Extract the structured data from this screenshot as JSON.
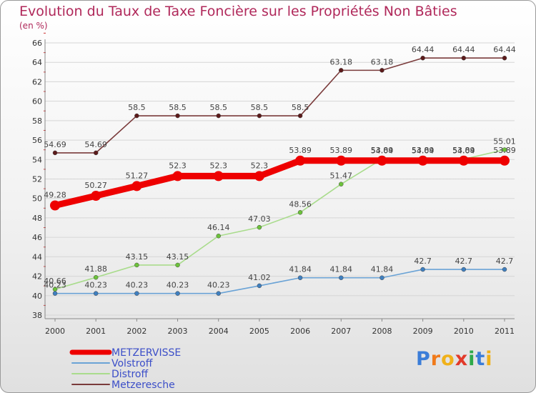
{
  "chart_data": {
    "type": "line",
    "title": "Evolution du Taux de Taxe Foncière sur les Propriétés Non Bâties",
    "subtitle": "(en %)",
    "categories": [
      "2000",
      "2001",
      "2002",
      "2003",
      "2004",
      "2005",
      "2006",
      "2007",
      "2008",
      "2009",
      "2010",
      "2011"
    ],
    "ylim": [
      38,
      66
    ],
    "yticks": [
      38,
      40,
      42,
      44,
      46,
      48,
      50,
      52,
      54,
      56,
      58,
      60,
      62,
      64,
      66
    ],
    "grid": true,
    "legend_position": "bottom-left",
    "series": [
      {
        "name": "Metzeresche",
        "color": "#7a3b3b",
        "marker": "#5c1a1a",
        "values": [
          54.69,
          54.69,
          58.5,
          58.5,
          58.5,
          58.5,
          58.5,
          63.18,
          63.18,
          64.44,
          64.44,
          64.44
        ],
        "labels": [
          "54.69",
          "54.69",
          "58.5",
          "58.5",
          "58.5",
          "58.5",
          "58.5",
          "63.18",
          "63.18",
          "64.44",
          "64.44",
          "64.44"
        ]
      },
      {
        "name": "Distroff",
        "color": "#a9dc8c",
        "marker": "#6cc23a",
        "values": [
          40.66,
          41.88,
          43.15,
          43.15,
          46.14,
          47.03,
          48.56,
          51.47,
          54.04,
          54.04,
          54.04,
          55.01
        ],
        "labels": [
          "40.66",
          "41.88",
          "43.15",
          "43.15",
          "46.14",
          "47.03",
          "48.56",
          "51.47",
          "54.04",
          "54.04",
          "54.04",
          "55.01"
        ]
      },
      {
        "name": "Volstroff",
        "color": "#6aa3d6",
        "marker": "#3f7fbf",
        "values": [
          40.23,
          40.23,
          40.23,
          40.23,
          40.23,
          41.02,
          41.84,
          41.84,
          41.84,
          42.7,
          42.7,
          42.7
        ],
        "labels": [
          "40.23",
          "40.23",
          "40.23",
          "40.23",
          "40.23",
          "41.02",
          "41.84",
          "41.84",
          "41.84",
          "42.7",
          "42.7",
          "42.7"
        ]
      },
      {
        "name": "METZERVISSE",
        "color": "#ee0000",
        "marker": "#ee0000",
        "values": [
          49.28,
          50.27,
          51.27,
          52.3,
          52.3,
          52.3,
          53.89,
          53.89,
          53.89,
          53.89,
          53.89,
          53.89
        ],
        "labels": [
          "49.28",
          "50.27",
          "51.27",
          "52.3",
          "52.3",
          "52.3",
          "53.89",
          "53.89",
          "53.89",
          "53.89",
          "53.89",
          "53.89"
        ]
      }
    ],
    "legend": [
      "METZERVISSE",
      "Volstroff",
      "Distroff",
      "Metzeresche"
    ]
  },
  "brand": {
    "letters": [
      "P",
      "r",
      "o",
      "x",
      "i",
      "t",
      "i"
    ],
    "colors": [
      "#3b7dd8",
      "#f07a1a",
      "#f0b11a",
      "#e23a2a",
      "#2eaa4a",
      "#3b7dd8",
      "#f0b11a"
    ]
  }
}
